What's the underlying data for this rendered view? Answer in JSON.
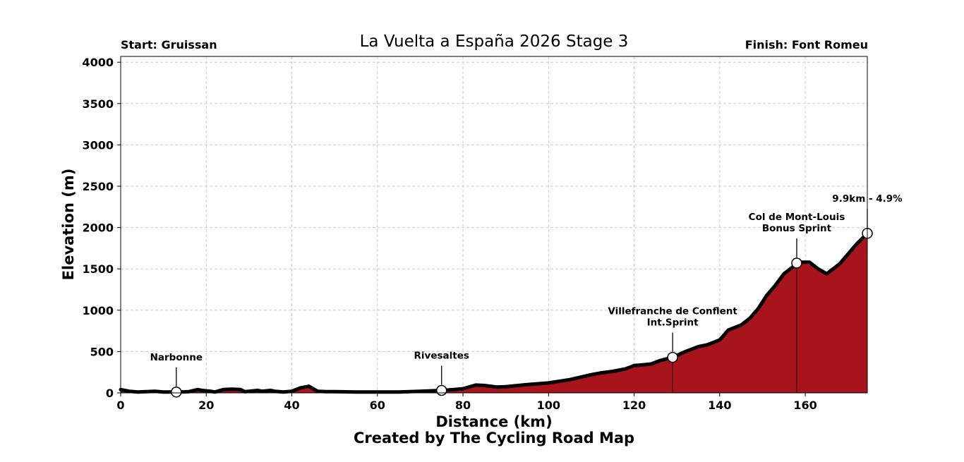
{
  "header": {
    "title": "La Vuelta a España 2026 Stage 3",
    "start": "Start: Gruissan",
    "finish": "Finish: Font Romeu"
  },
  "footer": {
    "credit": "Created by The Cycling Road Map"
  },
  "chart_data": {
    "type": "area",
    "xlabel": "Distance (km)",
    "ylabel": "Elevation (m)",
    "xlim": [
      0,
      174.5
    ],
    "ylim": [
      0,
      4070
    ],
    "xticks": [
      0,
      20,
      40,
      60,
      80,
      100,
      120,
      140,
      160
    ],
    "yticks": [
      0,
      500,
      1000,
      1500,
      2000,
      2500,
      3000,
      3500,
      4000
    ],
    "grid": true,
    "fill_color": "#a8141c",
    "line_color": "#000000",
    "x": [
      0,
      2,
      4,
      6,
      8,
      10,
      12,
      13,
      14,
      16,
      18,
      19,
      21,
      22,
      24,
      26,
      28,
      29,
      30,
      32,
      33,
      35,
      36,
      38,
      40,
      41,
      42,
      44,
      45,
      46,
      48,
      50,
      55,
      60,
      65,
      70,
      75,
      78,
      80,
      82,
      83,
      85,
      88,
      90,
      95,
      100,
      105,
      110,
      112,
      115,
      118,
      120,
      122,
      124,
      126,
      129,
      132,
      135,
      137,
      138,
      140,
      141,
      142,
      144,
      145,
      147,
      149,
      151,
      153,
      155,
      157,
      158,
      159,
      161,
      162,
      163,
      165,
      166,
      168,
      170,
      172,
      174.5
    ],
    "elevation": [
      40,
      20,
      10,
      15,
      20,
      10,
      10,
      10,
      10,
      15,
      40,
      30,
      20,
      10,
      40,
      45,
      40,
      15,
      20,
      30,
      20,
      30,
      20,
      10,
      20,
      40,
      60,
      80,
      50,
      20,
      15,
      15,
      10,
      10,
      10,
      20,
      30,
      40,
      50,
      80,
      95,
      90,
      70,
      75,
      100,
      120,
      160,
      220,
      240,
      260,
      290,
      330,
      340,
      350,
      390,
      430,
      500,
      560,
      580,
      600,
      640,
      700,
      760,
      800,
      820,
      900,
      1020,
      1180,
      1300,
      1440,
      1520,
      1570,
      1580,
      1580,
      1540,
      1500,
      1440,
      1480,
      1560,
      1680,
      1800,
      1930
    ],
    "annotations": [
      {
        "label": "Narbonne",
        "sublabel": "",
        "x": 13,
        "elevation": 10
      },
      {
        "label": "Rivesaltes",
        "sublabel": "",
        "x": 75,
        "elevation": 30
      },
      {
        "label": "Villefranche de Conflent",
        "sublabel": "Int.Sprint",
        "x": 129,
        "elevation": 430
      },
      {
        "label": "Col de Mont-Louis",
        "sublabel": "Bonus Sprint",
        "x": 158,
        "elevation": 1570
      },
      {
        "label": "9.9km - 4.9%",
        "sublabel": "",
        "x": 174.5,
        "elevation": 1930
      }
    ]
  }
}
